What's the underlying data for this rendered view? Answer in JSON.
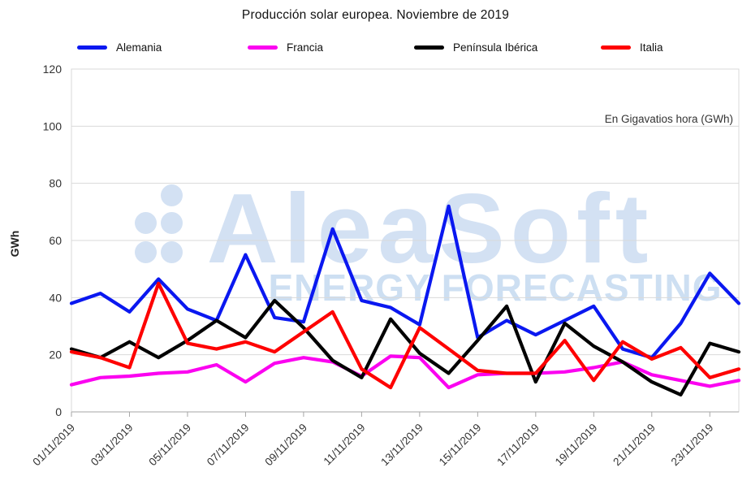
{
  "title": "Producción solar europea. Noviembre de 2019",
  "ylabel": "GWh",
  "annotation": "En Gigavatios hora (GWh)",
  "watermark": {
    "brand": "AleaSoft",
    "tagline": "ENERGY FORECASTING",
    "brand_color": "#d3e1f3",
    "tagline_color": "#cddff2",
    "dot_color": "#d3e1f3"
  },
  "chart_data": {
    "type": "line",
    "title": "Producción solar europea. Noviembre de 2019",
    "xlabel": "",
    "ylabel": "GWh",
    "ylim": [
      0,
      120
    ],
    "y_ticks": [
      0,
      20,
      40,
      60,
      80,
      100,
      120
    ],
    "grid": true,
    "legend_position": "top",
    "x_tick_step": 2,
    "x": [
      "01/11/2019",
      "02/11/2019",
      "03/11/2019",
      "04/11/2019",
      "05/11/2019",
      "06/11/2019",
      "07/11/2019",
      "08/11/2019",
      "09/11/2019",
      "10/11/2019",
      "11/11/2019",
      "12/11/2019",
      "13/11/2019",
      "14/11/2019",
      "15/11/2019",
      "16/11/2019",
      "17/11/2019",
      "18/11/2019",
      "19/11/2019",
      "20/11/2019",
      "21/11/2019",
      "22/11/2019",
      "23/11/2019",
      "24/11/2019"
    ],
    "series": [
      {
        "name": "Alemania",
        "color": "#0a18f0",
        "values": [
          38,
          41.5,
          35,
          46.5,
          36,
          32,
          55,
          33,
          31.5,
          64,
          39,
          36.5,
          30.5,
          72,
          26,
          32,
          27,
          32,
          37,
          22,
          19,
          31,
          48.5,
          38
        ]
      },
      {
        "name": "Francia",
        "color": "#fb02f0",
        "values": [
          9.5,
          12,
          12.5,
          13.5,
          14,
          16.5,
          10.5,
          17,
          19,
          17.5,
          12.5,
          19.5,
          19,
          8.5,
          13,
          13.5,
          13.5,
          14,
          15.5,
          17.5,
          13,
          11,
          9,
          11
        ]
      },
      {
        "name": "Península Ibérica",
        "color": "#000000",
        "values": [
          22,
          19,
          24.5,
          19,
          25,
          32,
          26,
          39,
          29.5,
          18,
          12,
          32.5,
          20.5,
          13.5,
          25,
          37,
          10.5,
          31,
          23,
          17.5,
          10.5,
          6,
          24,
          21
        ]
      },
      {
        "name": "Italia",
        "color": "#fe0000",
        "values": [
          21,
          19,
          15.5,
          45,
          24,
          22,
          24.5,
          21,
          28,
          35,
          15,
          8.5,
          29.5,
          22,
          14.5,
          13.5,
          13.5,
          25,
          11,
          24.5,
          18.5,
          22.5,
          12,
          15
        ]
      }
    ]
  }
}
